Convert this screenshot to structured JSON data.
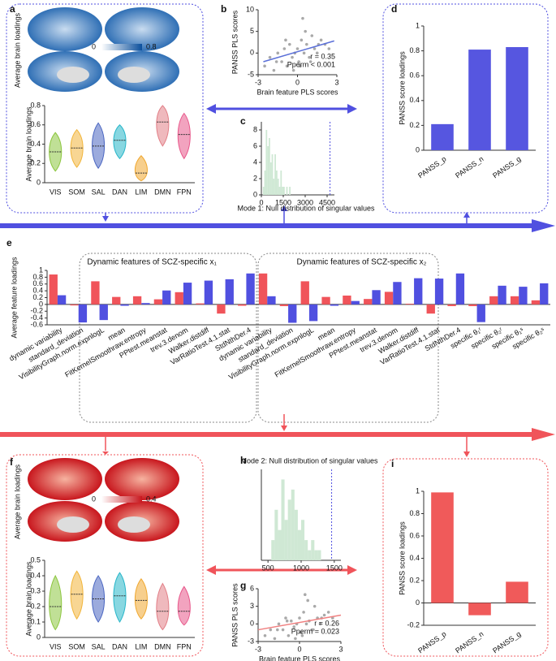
{
  "chart_data": [
    {
      "type": "violin",
      "panel": "a",
      "brain_label": "Average brain loadings",
      "colorbar": [
        0,
        0.8
      ],
      "ylabel": "Average brain loadings",
      "categories": [
        "VIS",
        "SOM",
        "SAL",
        "DAN",
        "LIM",
        "DMN",
        "FPN"
      ],
      "values": [
        0.32,
        0.36,
        0.38,
        0.44,
        0.1,
        0.63,
        0.5
      ],
      "low": [
        0.12,
        0.16,
        0.15,
        0.25,
        0.02,
        0.38,
        0.25
      ],
      "high": [
        0.52,
        0.55,
        0.62,
        0.6,
        0.28,
        0.8,
        0.72
      ],
      "colors": [
        "#8cc63f",
        "#f2b53a",
        "#4a66c1",
        "#27b6c9",
        "#f0a830",
        "#e27f87",
        "#e8588b"
      ],
      "ylim": [
        0,
        0.8
      ],
      "yticks": [
        0,
        0.2,
        0.4,
        0.6,
        0.8
      ]
    },
    {
      "type": "scatter",
      "panel": "b",
      "xlabel": "Brain feature PLS scores",
      "ylabel": "PANSS PLS scores",
      "annotations": [
        "r = 0.35",
        "Pperm < 0.001"
      ],
      "x": [
        -2.5,
        -2.1,
        -1.8,
        -1.5,
        -1.2,
        -1,
        -0.8,
        -0.6,
        -0.4,
        -0.2,
        0,
        0.1,
        0.3,
        0.5,
        0.7,
        0.9,
        1.1,
        1.3,
        1.5,
        1.8,
        2.1,
        2.4,
        -1.6,
        -0.9,
        0.2,
        0.6,
        1,
        1.6,
        -0.3,
        0.4
      ],
      "y": [
        -3,
        -1,
        -4,
        0,
        -2,
        1,
        -3,
        2,
        -1,
        0,
        1,
        -2,
        3,
        0,
        2,
        -1,
        4,
        1,
        0,
        3,
        2,
        1,
        -2,
        3,
        -3,
        5,
        -2,
        2,
        -4,
        8
      ],
      "fit_x": [
        -2.6,
        2.8
      ],
      "fit_y": [
        -2,
        2.8
      ],
      "color": "#a9a9a9",
      "fit_color": "#5a6fd8",
      "xlim": [
        -3,
        3
      ],
      "xticks": [
        -3,
        0,
        3
      ],
      "ylim": [
        -5,
        10
      ],
      "yticks": [
        -5,
        0,
        5,
        10
      ]
    },
    {
      "type": "histogram",
      "panel": "c",
      "title": "Mode 1: Null distribution of singular values",
      "bins": [
        0,
        100,
        200,
        300,
        400,
        500,
        600,
        700,
        800,
        900,
        1000,
        1100,
        1200,
        1300,
        1400,
        1500,
        1600,
        1700,
        1800,
        1900,
        2000
      ],
      "values": [
        0,
        1,
        3,
        8,
        6,
        7,
        4,
        5,
        2,
        5,
        3,
        2,
        1,
        3,
        1,
        1,
        0,
        1,
        0,
        1
      ],
      "reference_line": 4700,
      "color": "#cfe8d4",
      "xlim": [
        0,
        5000
      ],
      "xticks": [
        0,
        1500,
        3000,
        4500
      ],
      "ylim": [
        0,
        9
      ],
      "yticks": [
        0,
        2,
        4,
        6,
        8
      ]
    },
    {
      "type": "bar",
      "panel": "d",
      "ylabel": "PANSS score loadings",
      "categories": [
        "PANSS_p",
        "PANSS_n",
        "PANSS_g"
      ],
      "values": [
        0.21,
        0.81,
        0.83
      ],
      "color": "#5656e0",
      "ylim": [
        0,
        1
      ],
      "yticks": [
        0,
        0.2,
        0.4,
        0.6,
        0.8,
        1
      ]
    },
    {
      "type": "grouped-bar",
      "panel": "e",
      "ylabel": "Average feature loadings",
      "group_titles": [
        "Dynamic features of SCZ-specific x₁",
        "Dynamic features of SCZ-specific x₂"
      ],
      "categories": [
        "dynamic variability",
        "standard_deviation",
        "VisibilityGraph.norm.expnlogL",
        "mean",
        "FitKernelSmoothraw.entropy",
        "PPtest.meanstat",
        "trev.3.denom",
        "Walker.distdiff",
        "VarRatioTest.4.1.stat",
        "StdNthDer.4",
        "dynamic variability",
        "standard_deviation",
        "VisibilityGraph.norm.expnlogL",
        "mean",
        "FitKernelSmoothraw.entropy",
        "PPtest.meanstat",
        "trev.3.denom",
        "Walker.distdiff",
        "VarRatioTest.4.1.stat",
        "StdNthDer.4",
        "specific θ₁ʳ",
        "specific θ₂ʳ",
        "specific θ₁ˢ",
        "specific θ₂ˢ"
      ],
      "series": [
        {
          "color": "#f0545a",
          "values": [
            0.88,
            -0.03,
            0.68,
            0.22,
            0.24,
            0.15,
            0.36,
            0.03,
            -0.27,
            -0.04,
            0.91,
            -0.05,
            0.68,
            0.22,
            0.26,
            0.16,
            0.37,
            0.02,
            -0.27,
            -0.05,
            -0.05,
            0.24,
            0.24,
            0.12
          ]
        },
        {
          "color": "#5050e0",
          "values": [
            0.27,
            -0.53,
            -0.46,
            -0.04,
            0.04,
            0.41,
            0.64,
            0.7,
            0.74,
            0.91,
            0.24,
            -0.54,
            -0.49,
            -0.04,
            0.1,
            0.42,
            0.66,
            0.77,
            0.76,
            0.91,
            -0.52,
            0.55,
            0.52,
            0.62
          ]
        }
      ],
      "ylim": [
        -0.6,
        1
      ],
      "yticks": [
        -0.6,
        -0.4,
        -0.2,
        0,
        0.2,
        0.4,
        0.6,
        0.8,
        1
      ]
    },
    {
      "type": "violin",
      "panel": "f",
      "brain_label": "Average brain loadings",
      "colorbar": [
        0,
        0.4
      ],
      "ylabel": "Average brain loadings",
      "categories": [
        "VIS",
        "SOM",
        "SAL",
        "DAN",
        "LIM",
        "DMN",
        "FPN"
      ],
      "values": [
        0.2,
        0.28,
        0.25,
        0.27,
        0.24,
        0.17,
        0.17
      ],
      "low": [
        0.05,
        0.12,
        0.1,
        0.1,
        0.12,
        0.05,
        0.08
      ],
      "high": [
        0.4,
        0.43,
        0.4,
        0.42,
        0.38,
        0.35,
        0.33
      ],
      "colors": [
        "#8cc63f",
        "#f2b53a",
        "#4a66c1",
        "#27b6c9",
        "#f0a830",
        "#e27f87",
        "#e8588b"
      ],
      "ylim": [
        0,
        0.5
      ],
      "yticks": [
        0,
        0.1,
        0.2,
        0.3,
        0.4,
        0.5
      ]
    },
    {
      "type": "histogram",
      "panel": "h",
      "title": "Mode 2: Null distribution of singular values",
      "bins": [
        550,
        600,
        650,
        700,
        750,
        800,
        850,
        900,
        950,
        1000,
        1050,
        1100,
        1150,
        1200,
        1250,
        1300
      ],
      "values": [
        2,
        5,
        3,
        8,
        4,
        6,
        7,
        5,
        3,
        4,
        2,
        1,
        2,
        1,
        1
      ],
      "reference_line": 1460,
      "color": "#cfe8d4",
      "xlim": [
        400,
        1600
      ],
      "xticks": [
        500,
        1000,
        1500
      ],
      "ylim": [
        0,
        9
      ]
    },
    {
      "type": "scatter",
      "panel": "g",
      "xlabel": "Brain feature PLS scores",
      "ylabel": "PANSS PLS scores",
      "annotations": [
        "r = 0.26",
        "Pperm = 0.023"
      ],
      "x": [
        -2.5,
        -2.1,
        -1.8,
        -1.5,
        -1.2,
        -1,
        -0.8,
        -0.6,
        -0.4,
        -0.2,
        0,
        0.1,
        0.3,
        0.5,
        0.7,
        0.9,
        1.1,
        1.3,
        1.5,
        1.8,
        2.1,
        2.4,
        -1.6,
        -0.9,
        0.2,
        0.6,
        1,
        1.6,
        -0.3,
        0.4
      ],
      "y": [
        -2,
        -1,
        -2.5,
        0,
        -1,
        1,
        -2,
        0.5,
        -0.5,
        0,
        1,
        -1.5,
        2,
        0,
        0.5,
        -1,
        3,
        1,
        0,
        1.5,
        2,
        1,
        -1,
        0.5,
        -2,
        4,
        -1,
        1,
        -2.5,
        5
      ],
      "fit_x": [
        -3,
        3
      ],
      "fit_y": [
        -1,
        1.5
      ],
      "color": "#a9a9a9",
      "fit_color": "#f08080",
      "xlim": [
        -3,
        3
      ],
      "xticks": [
        -3,
        0,
        3
      ],
      "ylim": [
        -3,
        6
      ],
      "yticks": [
        -3,
        0,
        3,
        6
      ]
    },
    {
      "type": "bar",
      "panel": "i",
      "ylabel": "PANSS score loadings",
      "categories": [
        "PANSS_p",
        "PANSS_n",
        "PANSS_g"
      ],
      "values": [
        0.99,
        -0.11,
        0.19
      ],
      "color": "#f05a5a",
      "ylim": [
        -0.2,
        1
      ],
      "yticks": [
        -0.2,
        0,
        0.2,
        0.4,
        0.6,
        0.8,
        1
      ]
    }
  ]
}
